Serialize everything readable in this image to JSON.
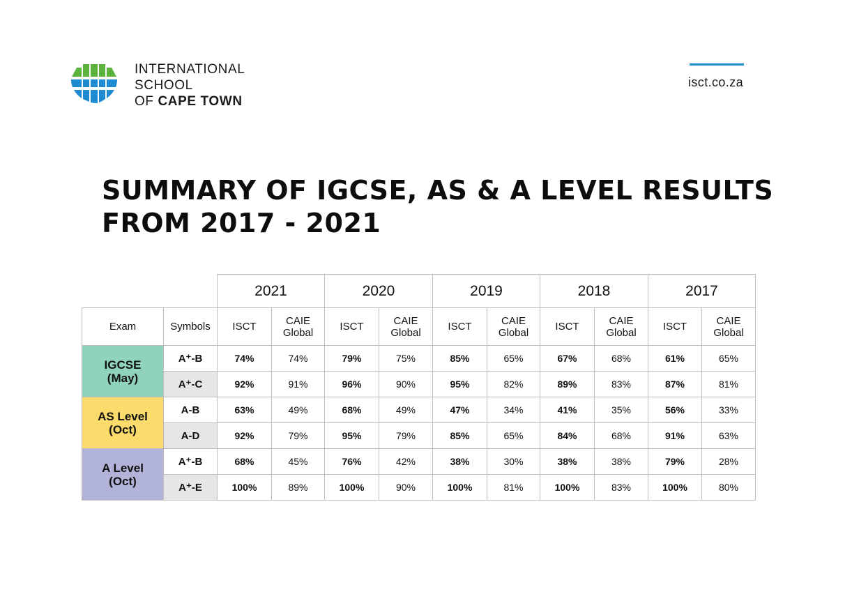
{
  "header": {
    "logo_lines": [
      "INTERNATIONAL",
      "SCHOOL",
      "OF",
      "CAPE TOWN"
    ],
    "url": "isct.co.za"
  },
  "title_lines": [
    "SUMMARY OF IGCSE, AS & A LEVEL RESULTS",
    "FROM 2017 - 2021"
  ],
  "colors": {
    "igcse": "#8fd3bd",
    "as_level": "#fbdb6b",
    "a_level": "#b2b3d9",
    "logo_green": "#5bb33d",
    "logo_blue": "#1e8ad0"
  },
  "table": {
    "years": [
      "2021",
      "2020",
      "2019",
      "2018",
      "2017"
    ],
    "col_headers": {
      "exam": "Exam",
      "symbols": "Symbols",
      "isct": "ISCT",
      "caie_line1": "CAIE",
      "caie_line2": "Global"
    },
    "groups": [
      {
        "name_line1": "IGCSE",
        "name_line2": "(May)",
        "rows": [
          {
            "symbol": "A⁺-B",
            "values": [
              "74%",
              "74%",
              "79%",
              "75%",
              "85%",
              "65%",
              "67%",
              "68%",
              "61%",
              "65%"
            ]
          },
          {
            "symbol": "A⁺-C",
            "values": [
              "92%",
              "91%",
              "96%",
              "90%",
              "95%",
              "82%",
              "89%",
              "83%",
              "87%",
              "81%"
            ]
          }
        ]
      },
      {
        "name_line1": "AS Level",
        "name_line2": "(Oct)",
        "rows": [
          {
            "symbol": "A-B",
            "values": [
              "63%",
              "49%",
              "68%",
              "49%",
              "47%",
              "34%",
              "41%",
              "35%",
              "56%",
              "33%"
            ]
          },
          {
            "symbol": "A-D",
            "values": [
              "92%",
              "79%",
              "95%",
              "79%",
              "85%",
              "65%",
              "84%",
              "68%",
              "91%",
              "63%"
            ]
          }
        ]
      },
      {
        "name_line1": "A Level",
        "name_line2": "(Oct)",
        "rows": [
          {
            "symbol": "A⁺-B",
            "values": [
              "68%",
              "45%",
              "76%",
              "42%",
              "38%",
              "30%",
              "38%",
              "38%",
              "79%",
              "28%"
            ]
          },
          {
            "symbol": "A⁺-E",
            "values": [
              "100%",
              "89%",
              "100%",
              "90%",
              "100%",
              "81%",
              "100%",
              "83%",
              "100%",
              "80%"
            ]
          }
        ]
      }
    ]
  }
}
